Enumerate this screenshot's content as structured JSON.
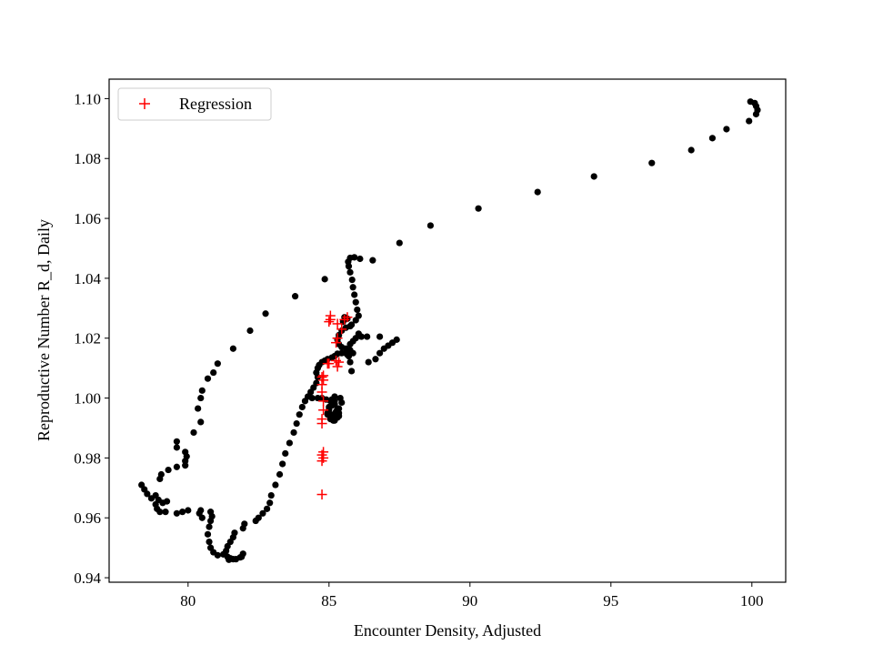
{
  "chart_data": {
    "type": "scatter",
    "title": "",
    "xlabel": "Encounter Density, Adjusted",
    "ylabel": "Reproductive Number R_d, Daily",
    "xlim": [
      77.2,
      101.2
    ],
    "ylim": [
      0.9385,
      1.1065
    ],
    "xticks": [
      80,
      85,
      90,
      95,
      100
    ],
    "yticks": [
      0.94,
      0.96,
      0.98,
      1.0,
      1.02,
      1.04,
      1.06,
      1.08,
      1.1
    ],
    "xtick_labels": [
      "80",
      "85",
      "90",
      "95",
      "100"
    ],
    "ytick_labels": [
      "0.94",
      "0.96",
      "0.98",
      "1.00",
      "1.02",
      "1.04",
      "1.06",
      "1.08",
      "1.10"
    ],
    "grid": false,
    "legend": {
      "position": "top-left",
      "entries": [
        "Regression"
      ]
    },
    "series": [
      {
        "marker": "dot",
        "color": "#000000",
        "points": [
          [
            100.1,
            1.0985
          ],
          [
            99.95,
            1.099
          ],
          [
            100.15,
            1.0975
          ],
          [
            100.2,
            1.0962
          ],
          [
            100.15,
            1.0948
          ],
          [
            99.9,
            1.0925
          ],
          [
            99.1,
            1.0898
          ],
          [
            98.6,
            1.0868
          ],
          [
            97.85,
            1.0828
          ],
          [
            96.45,
            1.0785
          ],
          [
            94.4,
            1.074
          ],
          [
            92.4,
            1.0688
          ],
          [
            90.3,
            1.0633
          ],
          [
            88.6,
            1.0576
          ],
          [
            87.5,
            1.0518
          ],
          [
            86.55,
            1.046
          ],
          [
            86.1,
            1.0465
          ],
          [
            85.9,
            1.047
          ],
          [
            85.75,
            1.0468
          ],
          [
            85.68,
            1.0455
          ],
          [
            85.7,
            1.044
          ],
          [
            85.75,
            1.042
          ],
          [
            85.82,
            1.0395
          ],
          [
            85.85,
            1.037
          ],
          [
            85.9,
            1.0345
          ],
          [
            85.95,
            1.032
          ],
          [
            86.0,
            1.0295
          ],
          [
            86.05,
            1.0275
          ],
          [
            85.95,
            1.026
          ],
          [
            85.8,
            1.0245
          ],
          [
            85.6,
            1.0235
          ],
          [
            85.45,
            1.0225
          ],
          [
            85.35,
            1.021
          ],
          [
            85.3,
            1.0195
          ],
          [
            85.35,
            1.018
          ],
          [
            85.45,
            1.017
          ],
          [
            85.6,
            1.0165
          ],
          [
            85.75,
            1.016
          ],
          [
            85.85,
            1.015
          ],
          [
            85.65,
            1.0145
          ],
          [
            85.45,
            1.015
          ],
          [
            85.3,
            1.0148
          ],
          [
            85.2,
            1.014
          ],
          [
            85.1,
            1.0135
          ],
          [
            84.95,
            1.013
          ],
          [
            84.85,
            1.0125
          ],
          [
            84.75,
            1.012
          ],
          [
            84.65,
            1.011
          ],
          [
            84.6,
            1.01
          ],
          [
            84.55,
            1.0085
          ],
          [
            84.6,
            1.007
          ],
          [
            84.55,
            1.005
          ],
          [
            84.45,
            1.0035
          ],
          [
            84.35,
            1.002
          ],
          [
            84.25,
            1.0005
          ],
          [
            84.15,
            0.999
          ],
          [
            84.05,
            0.997
          ],
          [
            83.95,
            0.9945
          ],
          [
            83.85,
            0.9915
          ],
          [
            83.75,
            0.9885
          ],
          [
            83.6,
            0.985
          ],
          [
            83.45,
            0.9815
          ],
          [
            83.35,
            0.978
          ],
          [
            83.25,
            0.9745
          ],
          [
            83.1,
            0.971
          ],
          [
            82.95,
            0.9675
          ],
          [
            82.9,
            0.965
          ],
          [
            82.8,
            0.963
          ],
          [
            82.65,
            0.9615
          ],
          [
            82.5,
            0.96
          ],
          [
            82.4,
            0.959
          ],
          [
            82.0,
            0.958
          ],
          [
            81.95,
            0.9565
          ],
          [
            81.65,
            0.955
          ],
          [
            81.6,
            0.9535
          ],
          [
            81.5,
            0.952
          ],
          [
            81.4,
            0.9505
          ],
          [
            81.35,
            0.949
          ],
          [
            81.25,
            0.9478
          ],
          [
            81.4,
            0.947
          ],
          [
            81.5,
            0.9465
          ],
          [
            81.7,
            0.9462
          ],
          [
            81.85,
            0.9468
          ],
          [
            81.95,
            0.948
          ],
          [
            81.9,
            0.947
          ],
          [
            81.6,
            0.9462
          ],
          [
            81.45,
            0.946
          ],
          [
            81.05,
            0.9475
          ],
          [
            80.9,
            0.9485
          ],
          [
            80.8,
            0.95
          ],
          [
            80.75,
            0.952
          ],
          [
            80.7,
            0.9545
          ],
          [
            80.75,
            0.957
          ],
          [
            80.8,
            0.959
          ],
          [
            80.85,
            0.9605
          ],
          [
            80.8,
            0.962
          ],
          [
            80.5,
            0.96
          ],
          [
            80.4,
            0.9615
          ],
          [
            80.45,
            0.9625
          ],
          [
            80.0,
            0.9625
          ],
          [
            79.8,
            0.962
          ],
          [
            79.6,
            0.9615
          ],
          [
            79.2,
            0.962
          ],
          [
            79.0,
            0.962
          ],
          [
            78.9,
            0.963
          ],
          [
            78.85,
            0.9645
          ],
          [
            78.95,
            0.966
          ],
          [
            78.85,
            0.9675
          ],
          [
            78.7,
            0.9665
          ],
          [
            78.55,
            0.968
          ],
          [
            78.45,
            0.9695
          ],
          [
            78.35,
            0.971
          ],
          [
            79.1,
            0.965
          ],
          [
            79.25,
            0.9655
          ],
          [
            79.0,
            0.973
          ],
          [
            79.05,
            0.9745
          ],
          [
            79.3,
            0.976
          ],
          [
            79.6,
            0.977
          ],
          [
            79.9,
            0.9775
          ],
          [
            79.9,
            0.979
          ],
          [
            79.95,
            0.9805
          ],
          [
            79.9,
            0.982
          ],
          [
            79.6,
            0.9835
          ],
          [
            79.6,
            0.9855
          ],
          [
            80.2,
            0.9885
          ],
          [
            80.45,
            0.992
          ],
          [
            80.35,
            0.9965
          ],
          [
            80.45,
            1.0
          ],
          [
            80.5,
            1.0025
          ],
          [
            80.7,
            1.0065
          ],
          [
            80.9,
            1.0085
          ],
          [
            81.05,
            1.0115
          ],
          [
            81.6,
            1.0165
          ],
          [
            82.2,
            1.0225
          ],
          [
            82.75,
            1.0282
          ],
          [
            83.8,
            1.034
          ],
          [
            84.85,
            1.0397
          ],
          [
            84.4,
            1.0
          ],
          [
            84.6,
            1.0
          ],
          [
            84.75,
            1.0
          ],
          [
            84.9,
            0.9995
          ],
          [
            85.05,
            0.999
          ],
          [
            85.2,
            0.998
          ],
          [
            85.3,
            0.9965
          ],
          [
            85.35,
            0.995
          ],
          [
            85.3,
            0.9935
          ],
          [
            85.2,
            0.9925
          ],
          [
            85.05,
            0.993
          ],
          [
            84.95,
            0.9945
          ],
          [
            85.0,
            0.997
          ],
          [
            85.1,
            0.9995
          ],
          [
            85.2,
            1.0005
          ],
          [
            85.4,
            1.0
          ],
          [
            85.45,
            0.9985
          ],
          [
            85.35,
            0.9965
          ],
          [
            85.25,
            0.9955
          ],
          [
            85.15,
            0.9945
          ],
          [
            85.05,
            0.9938
          ],
          [
            84.95,
            0.995
          ],
          [
            85.0,
            0.996
          ],
          [
            85.1,
            0.9975
          ],
          [
            85.2,
            0.999
          ],
          [
            85.35,
            0.994
          ],
          [
            85.15,
            0.9925
          ],
          [
            85.6,
            1.015
          ],
          [
            85.7,
            1.014
          ],
          [
            85.75,
            1.012
          ],
          [
            85.8,
            1.009
          ],
          [
            86.15,
            1.0205
          ],
          [
            86.35,
            1.0205
          ],
          [
            86.05,
            1.0215
          ],
          [
            85.95,
            1.02
          ],
          [
            85.85,
            1.019
          ],
          [
            85.75,
            1.018
          ],
          [
            86.4,
            1.012
          ],
          [
            86.65,
            1.013
          ],
          [
            86.8,
            1.015
          ],
          [
            86.95,
            1.0165
          ],
          [
            87.1,
            1.0175
          ],
          [
            87.25,
            1.0185
          ],
          [
            87.4,
            1.0195
          ],
          [
            86.8,
            1.0205
          ],
          [
            85.55,
            1.027
          ],
          [
            85.65,
            1.0265
          ],
          [
            85.5,
            1.0255
          ],
          [
            85.75,
            1.024
          ]
        ]
      },
      {
        "name": "Regression",
        "marker": "plus",
        "color": "#ff0000",
        "points": [
          [
            84.75,
            0.9678
          ],
          [
            84.75,
            0.979
          ],
          [
            84.8,
            0.98
          ],
          [
            84.75,
            0.981
          ],
          [
            84.8,
            0.982
          ],
          [
            84.75,
            0.9915
          ],
          [
            84.75,
            0.993
          ],
          [
            84.8,
            0.996
          ],
          [
            84.8,
            0.999
          ],
          [
            84.75,
            1.002
          ],
          [
            84.75,
            1.0045
          ],
          [
            84.8,
            1.006
          ],
          [
            84.75,
            1.007
          ],
          [
            84.8,
            1.0075
          ],
          [
            84.95,
            1.0115
          ],
          [
            85.0,
            1.0115
          ],
          [
            85.3,
            1.0105
          ],
          [
            85.35,
            1.012
          ],
          [
            85.25,
            1.0125
          ],
          [
            85.25,
            1.0185
          ],
          [
            85.3,
            1.02
          ],
          [
            85.45,
            1.023
          ],
          [
            85.3,
            1.0248
          ],
          [
            85.0,
            1.0255
          ],
          [
            85.05,
            1.0262
          ],
          [
            85.05,
            1.0275
          ],
          [
            85.55,
            1.0262
          ],
          [
            85.65,
            1.027
          ]
        ]
      }
    ]
  }
}
